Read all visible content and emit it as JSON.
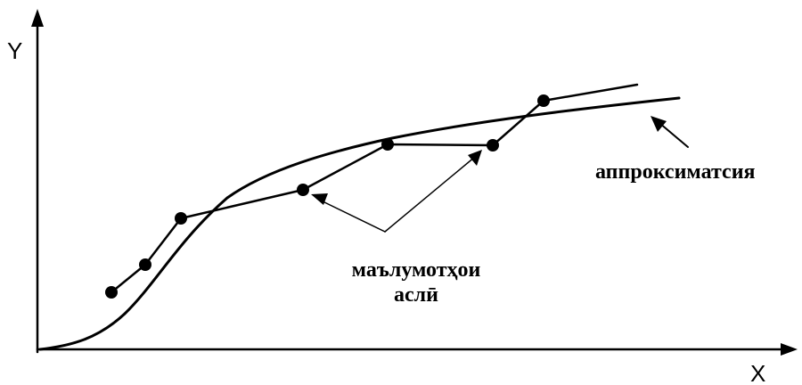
{
  "axes": {
    "x_label": "X",
    "y_label": "Y"
  },
  "labels": {
    "approximation": "аппроксиматсия",
    "source_data_line1": "маълумотҳои",
    "source_data_line2": "аслӣ"
  },
  "colors": {
    "ink": "#000000",
    "background": "#ffffff"
  }
}
